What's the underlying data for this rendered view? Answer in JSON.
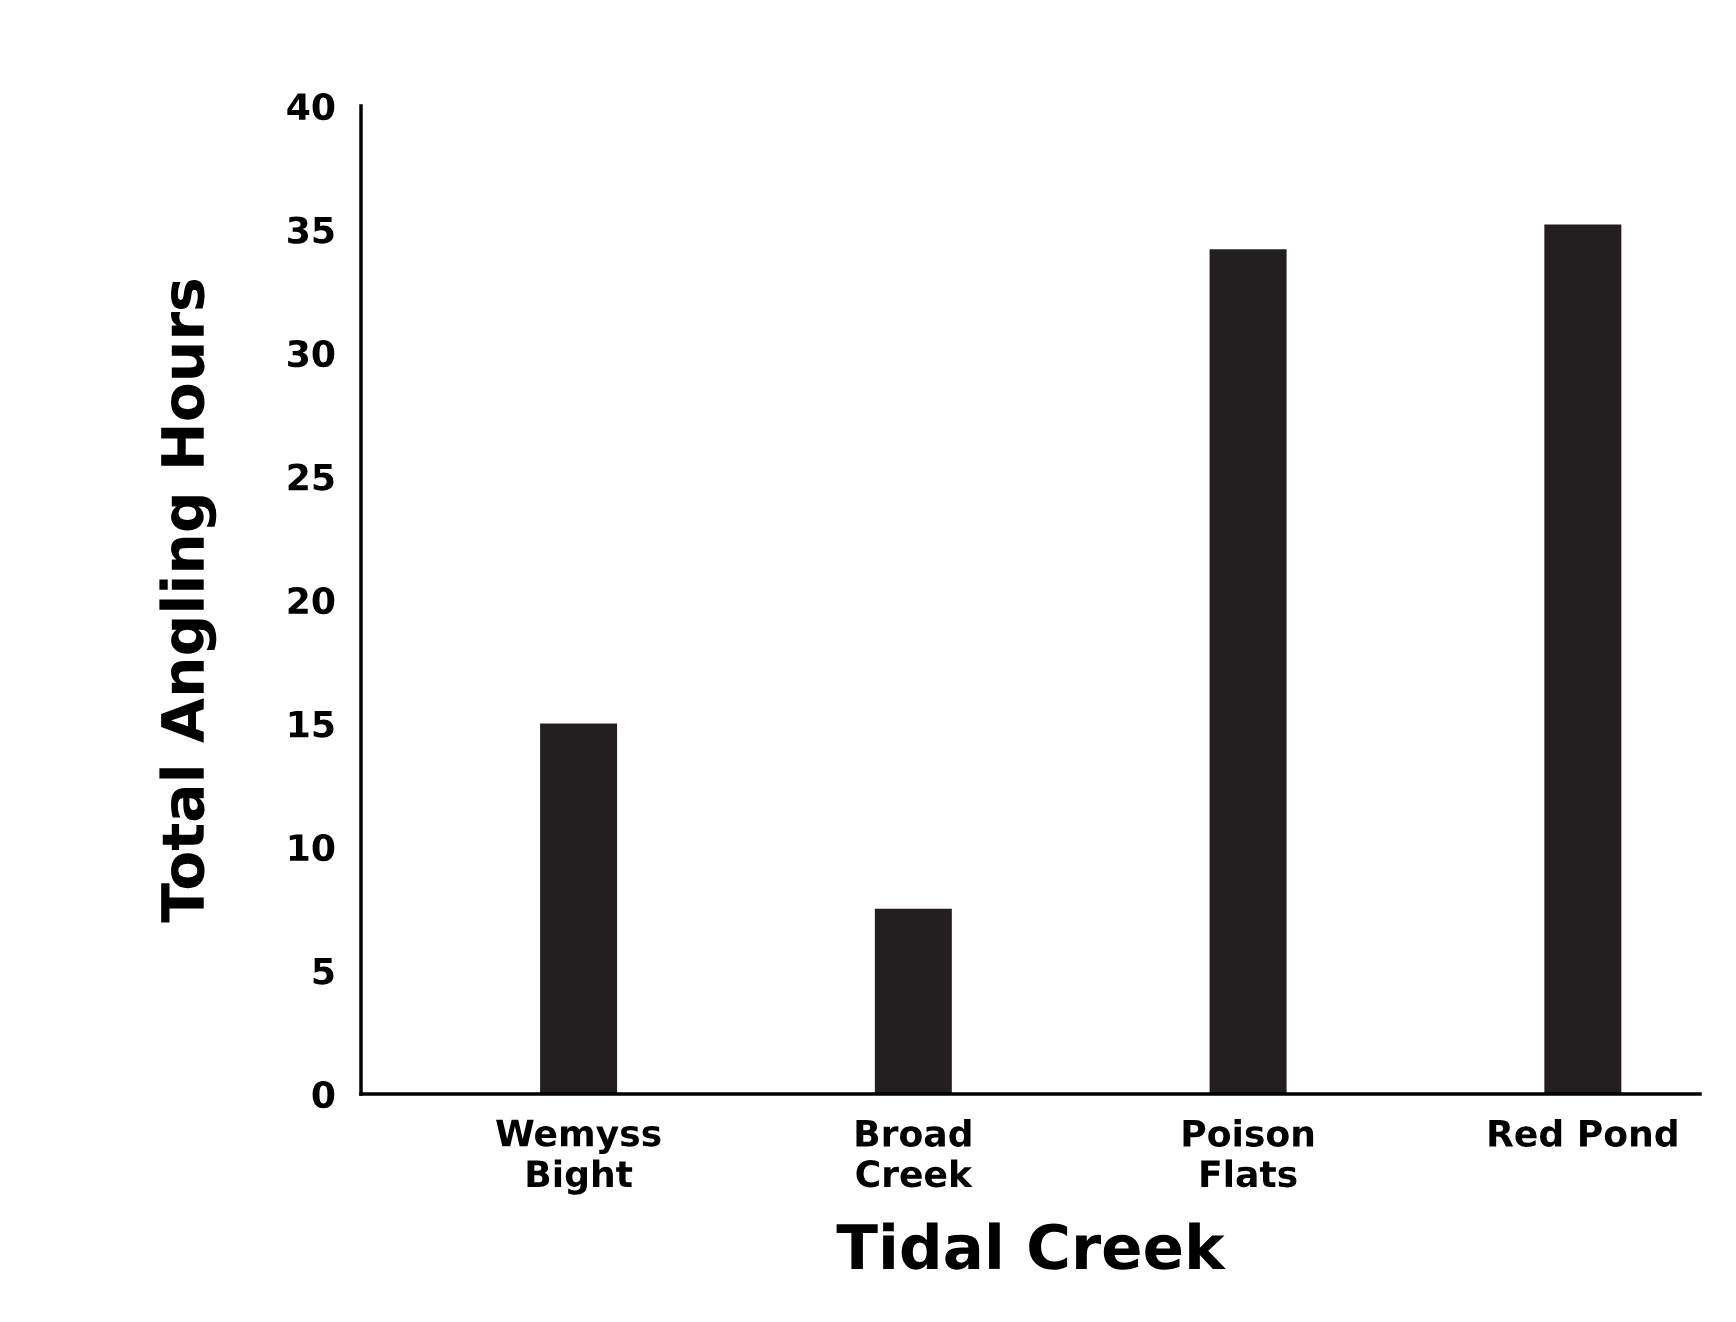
{
  "chart_data": {
    "type": "bar",
    "xlabel": "Tidal Creek",
    "ylabel": "Total Angling Hours",
    "categories": [
      "Wemyss\nBight",
      "Broad\nCreek",
      "Poison\nFlats",
      "Red Pond"
    ],
    "values": [
      15,
      7.5,
      34.2,
      35.2
    ],
    "color": "#231f20",
    "ylim": [
      0,
      40
    ],
    "yticks": [
      0,
      5,
      10,
      15,
      20,
      25,
      30,
      35,
      40
    ],
    "grid": false,
    "legend": false
  }
}
